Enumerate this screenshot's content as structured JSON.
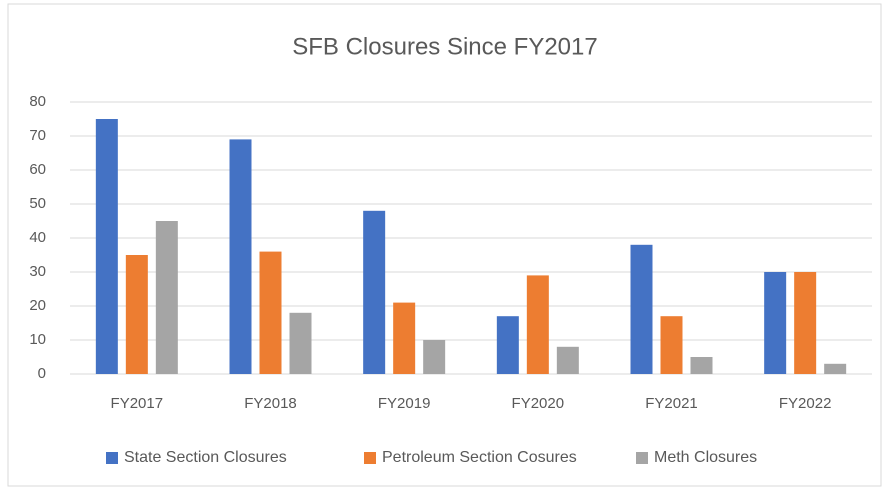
{
  "chart_data": {
    "type": "bar",
    "title": "SFB Closures Since FY2017",
    "categories": [
      "FY2017",
      "FY2018",
      "FY2019",
      "FY2020",
      "FY2021",
      "FY2022"
    ],
    "series": [
      {
        "name": "State Section Closures",
        "color": "#4472c4",
        "values": [
          75,
          69,
          48,
          17,
          38,
          30
        ]
      },
      {
        "name": "Petroleum Section Cosures",
        "color": "#ed7d31",
        "values": [
          35,
          36,
          21,
          29,
          17,
          30
        ]
      },
      {
        "name": "Meth Closures",
        "color": "#a5a5a5",
        "values": [
          45,
          18,
          10,
          8,
          5,
          3
        ]
      }
    ],
    "ylim": [
      0,
      80
    ],
    "yticks": [
      0,
      10,
      20,
      30,
      40,
      50,
      60,
      70,
      80
    ],
    "grid": true,
    "legend": "bottom"
  }
}
